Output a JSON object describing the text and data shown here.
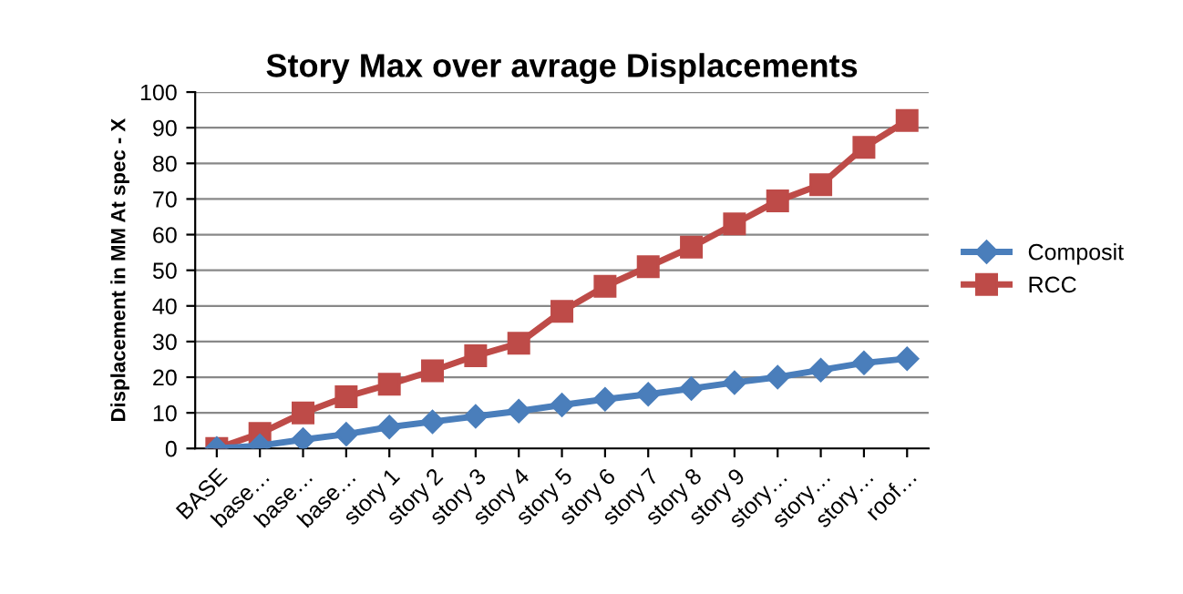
{
  "chart_data": {
    "type": "line",
    "title": "Story Max over avrage Displacements",
    "ylabel": "Displacement in MM At spec - X",
    "categories": [
      "BASE",
      "base…",
      "base…",
      "base…",
      "story 1",
      "story 2",
      "story 3",
      "story 4",
      "story 5",
      "story 6",
      "story 7",
      "story 8",
      "story 9",
      "story…",
      "story…",
      "story…",
      "roof…"
    ],
    "series": [
      {
        "name": "Composit",
        "color": "#4a7ebb",
        "marker": "diamond",
        "values": [
          0,
          0.8,
          2.5,
          4,
          6,
          7.5,
          9,
          10.5,
          12.2,
          13.8,
          15.2,
          16.8,
          18.5,
          20,
          22,
          24,
          25.2
        ]
      },
      {
        "name": "RCC",
        "color": "#be4b48",
        "marker": "square",
        "values": [
          0,
          4.2,
          10,
          14.5,
          18,
          21.8,
          26,
          29.5,
          38.5,
          45.5,
          51,
          56.5,
          63,
          69.5,
          74,
          84.5,
          92
        ]
      }
    ],
    "ylim": [
      0,
      100
    ],
    "yticks": [
      0,
      10,
      20,
      30,
      40,
      50,
      60,
      70,
      80,
      90,
      100
    ],
    "grid": "y",
    "legend": "right",
    "line_style": "solid"
  }
}
